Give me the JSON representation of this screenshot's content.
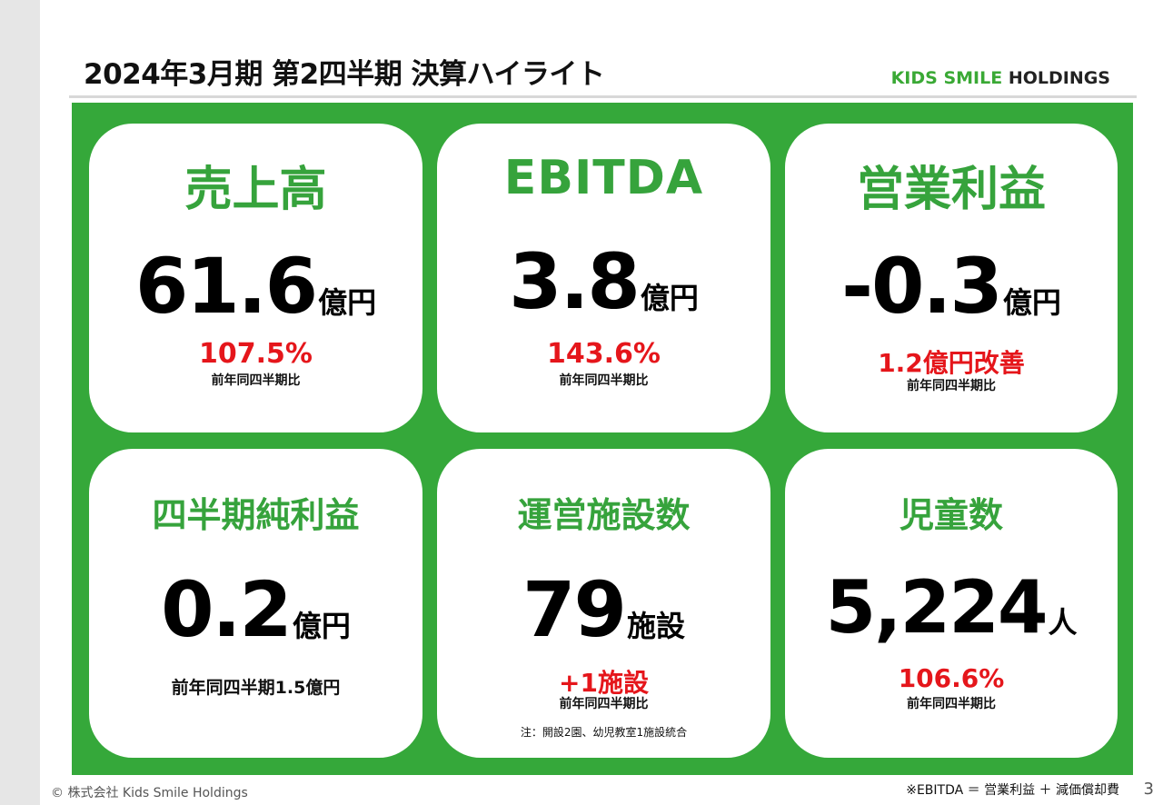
{
  "header": {
    "title": "2024年3月期 第2四半期 決算ハイライト",
    "logo_kids": "KIDS SMILE",
    "logo_holdings": "HOLDINGS"
  },
  "cards": [
    {
      "label": "売上高",
      "value": "61.6",
      "unit": "億円",
      "change": "107.5%",
      "note": "前年同四半期比"
    },
    {
      "label": "EBITDA",
      "value": "3.8",
      "unit": "億円",
      "change": "143.6%",
      "note": "前年同四半期比"
    },
    {
      "label": "営業利益",
      "value": "-0.3",
      "unit": "億円",
      "change": "1.2億円改善",
      "note": "前年同四半期比"
    },
    {
      "label": "四半期純利益",
      "value": "0.2",
      "unit": "億円",
      "note": "前年同四半期1.5億円"
    },
    {
      "label": "運営施設数",
      "value": "79",
      "unit": "施設",
      "change": "+1施設",
      "note": "前年同四半期比",
      "footnote": "注：開設2園、幼児教室1施設統合"
    },
    {
      "label": "児童数",
      "value": "5,224",
      "unit": "人",
      "change": "106.6%",
      "note": "前年同四半期比"
    }
  ],
  "footer": {
    "copyright": "© 株式会社 Kids Smile Holdings",
    "ebitda_note": "※EBITDA ＝ 営業利益 ＋ 減価償却費",
    "page_number": "3"
  },
  "colors": {
    "accent_green": "#35a83a",
    "label_green": "#36a33c",
    "highlight_red": "#e5161b"
  }
}
